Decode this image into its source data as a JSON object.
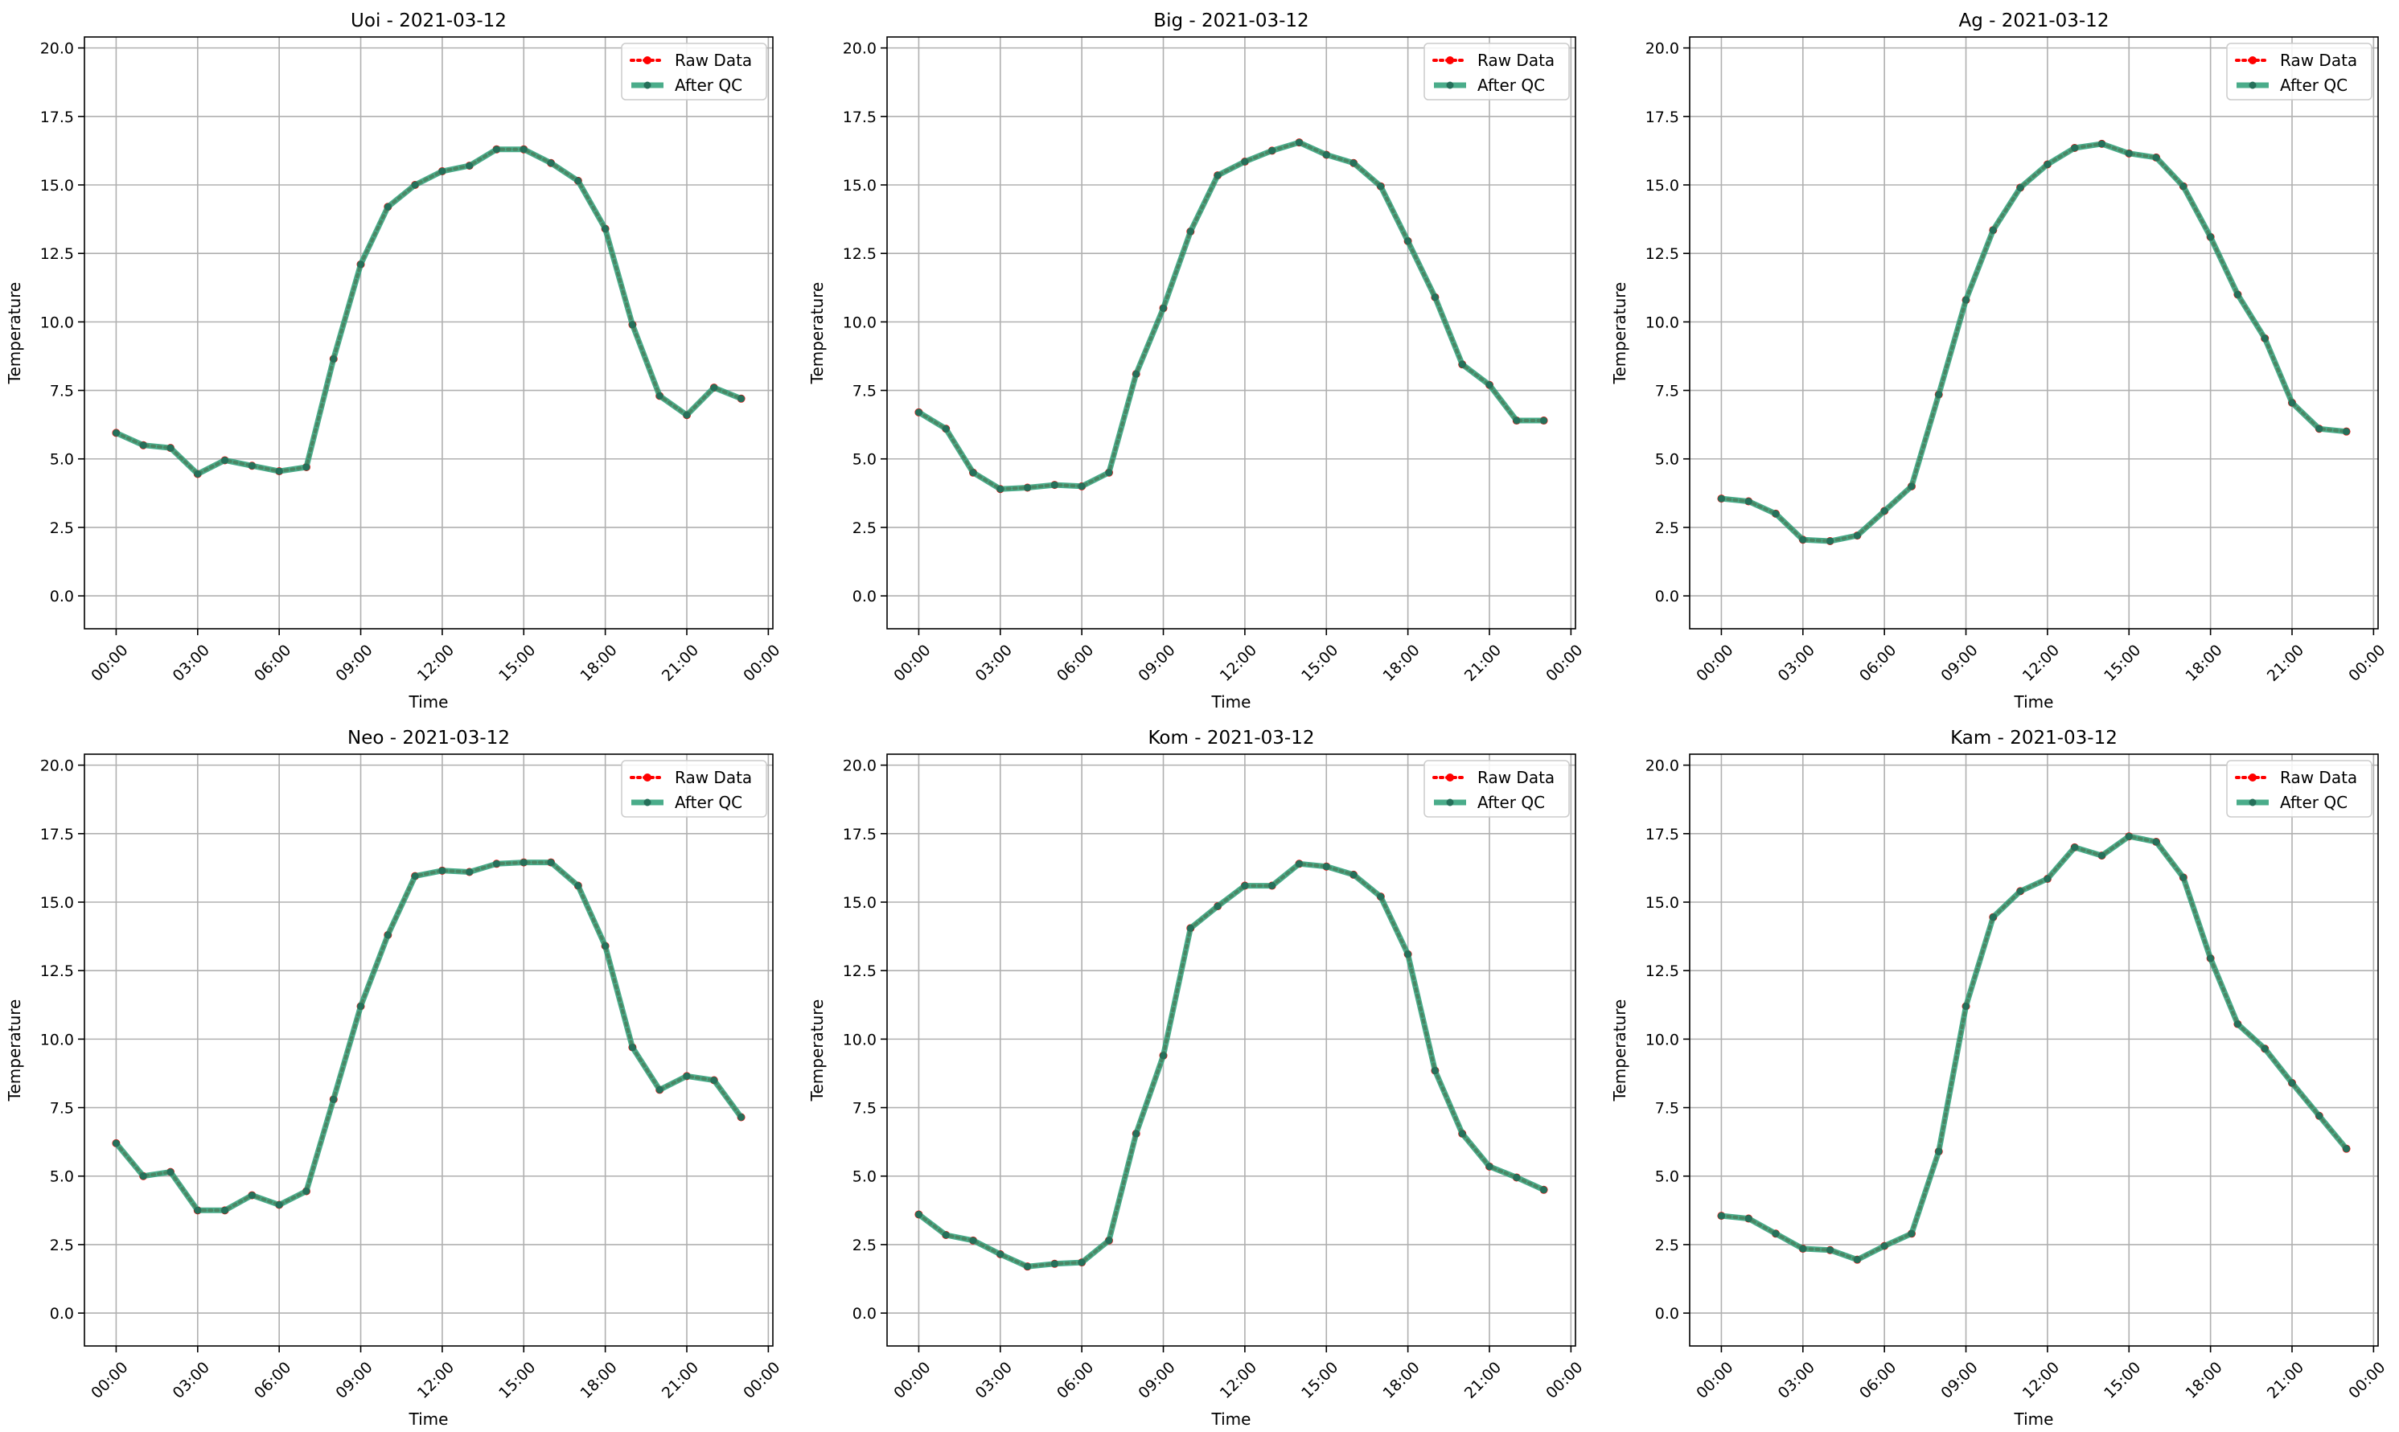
{
  "figure": {
    "background": "#ffffff"
  },
  "styles": {
    "raw_color": "#ff0000",
    "qc_color": "#2a9d75",
    "grid_color": "#b0b0b0"
  },
  "chart_data": [
    {
      "type": "line",
      "title": "Uoi - 2021-03-12",
      "xlabel": "Time",
      "ylabel": "Temperature",
      "xlim": [
        "2021-03-11 22:50",
        "2021-03-13 00:10"
      ],
      "ylim": [
        -1.2,
        20.4
      ],
      "xticks": [
        "00:00",
        "03:00",
        "06:00",
        "09:00",
        "12:00",
        "15:00",
        "18:00",
        "21:00",
        "00:00"
      ],
      "yticks": [
        "0.0",
        "2.5",
        "5.0",
        "7.5",
        "10.0",
        "12.5",
        "15.0",
        "17.5",
        "20.0"
      ],
      "grid": true,
      "legend": {
        "position": "upper-right",
        "entries": [
          "Raw Data",
          "After QC"
        ]
      },
      "x": [
        "00:00",
        "01:00",
        "02:00",
        "03:00",
        "04:00",
        "05:00",
        "06:00",
        "07:00",
        "08:00",
        "09:00",
        "10:00",
        "11:00",
        "12:00",
        "13:00",
        "14:00",
        "15:00",
        "16:00",
        "17:00",
        "18:00",
        "19:00",
        "20:00",
        "21:00",
        "22:00",
        "23:00"
      ],
      "series": [
        {
          "name": "Raw Data",
          "values": [
            5.95,
            5.5,
            5.4,
            4.45,
            4.95,
            4.75,
            4.55,
            4.7,
            8.65,
            12.1,
            14.2,
            15.0,
            15.5,
            15.7,
            16.3,
            16.3,
            15.8,
            15.15,
            13.4,
            9.9,
            7.3,
            6.6,
            7.6,
            7.2
          ]
        },
        {
          "name": "After QC",
          "values": [
            5.95,
            5.5,
            5.4,
            4.45,
            4.95,
            4.75,
            4.55,
            4.7,
            8.65,
            12.1,
            14.2,
            15.0,
            15.5,
            15.7,
            16.3,
            16.3,
            15.8,
            15.15,
            13.4,
            9.9,
            7.3,
            6.6,
            7.6,
            7.2
          ]
        }
      ]
    },
    {
      "type": "line",
      "title": "Big - 2021-03-12",
      "xlabel": "Time",
      "ylabel": "Temperature",
      "xlim": [
        "2021-03-11 22:50",
        "2021-03-13 00:10"
      ],
      "ylim": [
        -1.2,
        20.4
      ],
      "xticks": [
        "00:00",
        "03:00",
        "06:00",
        "09:00",
        "12:00",
        "15:00",
        "18:00",
        "21:00",
        "00:00"
      ],
      "yticks": [
        "0.0",
        "2.5",
        "5.0",
        "7.5",
        "10.0",
        "12.5",
        "15.0",
        "17.5",
        "20.0"
      ],
      "grid": true,
      "legend": {
        "position": "upper-right",
        "entries": [
          "Raw Data",
          "After QC"
        ]
      },
      "x": [
        "00:00",
        "01:00",
        "02:00",
        "03:00",
        "04:00",
        "05:00",
        "06:00",
        "07:00",
        "08:00",
        "09:00",
        "10:00",
        "11:00",
        "12:00",
        "13:00",
        "14:00",
        "15:00",
        "16:00",
        "17:00",
        "18:00",
        "19:00",
        "20:00",
        "21:00",
        "22:00",
        "23:00"
      ],
      "series": [
        {
          "name": "Raw Data",
          "values": [
            6.7,
            6.1,
            4.5,
            3.9,
            3.95,
            4.05,
            4.0,
            4.5,
            8.1,
            10.5,
            13.3,
            15.35,
            15.85,
            16.25,
            16.55,
            16.1,
            15.8,
            14.95,
            12.95,
            10.9,
            8.45,
            7.7,
            6.4,
            6.4
          ]
        },
        {
          "name": "After QC",
          "values": [
            6.7,
            6.1,
            4.5,
            3.9,
            3.95,
            4.05,
            4.0,
            4.5,
            8.1,
            10.5,
            13.3,
            15.35,
            15.85,
            16.25,
            16.55,
            16.1,
            15.8,
            14.95,
            12.95,
            10.9,
            8.45,
            7.7,
            6.4,
            6.4
          ]
        }
      ]
    },
    {
      "type": "line",
      "title": "Ag - 2021-03-12",
      "xlabel": "Time",
      "ylabel": "Temperature",
      "xlim": [
        "2021-03-11 22:50",
        "2021-03-13 00:10"
      ],
      "ylim": [
        -1.2,
        20.4
      ],
      "xticks": [
        "00:00",
        "03:00",
        "06:00",
        "09:00",
        "12:00",
        "15:00",
        "18:00",
        "21:00",
        "00:00"
      ],
      "yticks": [
        "0.0",
        "2.5",
        "5.0",
        "7.5",
        "10.0",
        "12.5",
        "15.0",
        "17.5",
        "20.0"
      ],
      "grid": true,
      "legend": {
        "position": "upper-right",
        "entries": [
          "Raw Data",
          "After QC"
        ]
      },
      "x": [
        "00:00",
        "01:00",
        "02:00",
        "03:00",
        "04:00",
        "05:00",
        "06:00",
        "07:00",
        "08:00",
        "09:00",
        "10:00",
        "11:00",
        "12:00",
        "13:00",
        "14:00",
        "15:00",
        "16:00",
        "17:00",
        "18:00",
        "19:00",
        "20:00",
        "21:00",
        "22:00",
        "23:00"
      ],
      "series": [
        {
          "name": "Raw Data",
          "values": [
            3.55,
            3.45,
            3.0,
            2.05,
            2.0,
            2.2,
            3.1,
            4.0,
            7.35,
            10.8,
            13.35,
            14.9,
            15.75,
            16.35,
            16.5,
            16.15,
            16.0,
            14.95,
            13.1,
            11.0,
            9.4,
            7.05,
            6.1,
            6.0
          ]
        },
        {
          "name": "After QC",
          "values": [
            3.55,
            3.45,
            3.0,
            2.05,
            2.0,
            2.2,
            3.1,
            4.0,
            7.35,
            10.8,
            13.35,
            14.9,
            15.75,
            16.35,
            16.5,
            16.15,
            16.0,
            14.95,
            13.1,
            11.0,
            9.4,
            7.05,
            6.1,
            6.0
          ]
        }
      ]
    },
    {
      "type": "line",
      "title": "Neo - 2021-03-12",
      "xlabel": "Time",
      "ylabel": "Temperature",
      "xlim": [
        "2021-03-11 22:50",
        "2021-03-13 00:10"
      ],
      "ylim": [
        -1.2,
        20.4
      ],
      "xticks": [
        "00:00",
        "03:00",
        "06:00",
        "09:00",
        "12:00",
        "15:00",
        "18:00",
        "21:00",
        "00:00"
      ],
      "yticks": [
        "0.0",
        "2.5",
        "5.0",
        "7.5",
        "10.0",
        "12.5",
        "15.0",
        "17.5",
        "20.0"
      ],
      "grid": true,
      "legend": {
        "position": "upper-right",
        "entries": [
          "Raw Data",
          "After QC"
        ]
      },
      "x": [
        "00:00",
        "01:00",
        "02:00",
        "03:00",
        "04:00",
        "05:00",
        "06:00",
        "07:00",
        "08:00",
        "09:00",
        "10:00",
        "11:00",
        "12:00",
        "13:00",
        "14:00",
        "15:00",
        "16:00",
        "17:00",
        "18:00",
        "19:00",
        "20:00",
        "21:00",
        "22:00",
        "23:00"
      ],
      "series": [
        {
          "name": "Raw Data",
          "values": [
            6.2,
            5.0,
            5.15,
            3.75,
            3.75,
            4.3,
            3.95,
            4.45,
            7.8,
            11.2,
            13.8,
            15.95,
            16.15,
            16.1,
            16.4,
            16.45,
            16.45,
            15.6,
            13.4,
            9.7,
            8.15,
            8.65,
            8.5,
            7.15
          ]
        },
        {
          "name": "After QC",
          "values": [
            6.2,
            5.0,
            5.15,
            3.75,
            3.75,
            4.3,
            3.95,
            4.45,
            7.8,
            11.2,
            13.8,
            15.95,
            16.15,
            16.1,
            16.4,
            16.45,
            16.45,
            15.6,
            13.4,
            9.7,
            8.15,
            8.65,
            8.5,
            7.15
          ]
        }
      ]
    },
    {
      "type": "line",
      "title": "Kom - 2021-03-12",
      "xlabel": "Time",
      "ylabel": "Temperature",
      "xlim": [
        "2021-03-11 22:50",
        "2021-03-13 00:10"
      ],
      "ylim": [
        -1.2,
        20.4
      ],
      "xticks": [
        "00:00",
        "03:00",
        "06:00",
        "09:00",
        "12:00",
        "15:00",
        "18:00",
        "21:00",
        "00:00"
      ],
      "yticks": [
        "0.0",
        "2.5",
        "5.0",
        "7.5",
        "10.0",
        "12.5",
        "15.0",
        "17.5",
        "20.0"
      ],
      "grid": true,
      "legend": {
        "position": "upper-right",
        "entries": [
          "Raw Data",
          "After QC"
        ]
      },
      "x": [
        "00:00",
        "01:00",
        "02:00",
        "03:00",
        "04:00",
        "05:00",
        "06:00",
        "07:00",
        "08:00",
        "09:00",
        "10:00",
        "11:00",
        "12:00",
        "13:00",
        "14:00",
        "15:00",
        "16:00",
        "17:00",
        "18:00",
        "19:00",
        "20:00",
        "21:00",
        "22:00",
        "23:00"
      ],
      "series": [
        {
          "name": "Raw Data",
          "values": [
            3.6,
            2.85,
            2.65,
            2.15,
            1.7,
            1.8,
            1.85,
            2.65,
            6.55,
            9.4,
            14.05,
            14.85,
            15.6,
            15.6,
            16.4,
            16.3,
            16.0,
            15.2,
            13.1,
            8.85,
            6.55,
            5.35,
            4.95,
            4.5
          ]
        },
        {
          "name": "After QC",
          "values": [
            3.6,
            2.85,
            2.65,
            2.15,
            1.7,
            1.8,
            1.85,
            2.65,
            6.55,
            9.4,
            14.05,
            14.85,
            15.6,
            15.6,
            16.4,
            16.3,
            16.0,
            15.2,
            13.1,
            8.85,
            6.55,
            5.35,
            4.95,
            4.5
          ]
        }
      ]
    },
    {
      "type": "line",
      "title": "Kam - 2021-03-12",
      "xlabel": "Time",
      "ylabel": "Temperature",
      "xlim": [
        "2021-03-11 22:50",
        "2021-03-13 00:10"
      ],
      "ylim": [
        -1.2,
        20.4
      ],
      "xticks": [
        "00:00",
        "03:00",
        "06:00",
        "09:00",
        "12:00",
        "15:00",
        "18:00",
        "21:00",
        "00:00"
      ],
      "yticks": [
        "0.0",
        "2.5",
        "5.0",
        "7.5",
        "10.0",
        "12.5",
        "15.0",
        "17.5",
        "20.0"
      ],
      "grid": true,
      "legend": {
        "position": "upper-right",
        "entries": [
          "Raw Data",
          "After QC"
        ]
      },
      "x": [
        "00:00",
        "01:00",
        "02:00",
        "03:00",
        "04:00",
        "05:00",
        "06:00",
        "07:00",
        "08:00",
        "09:00",
        "10:00",
        "11:00",
        "12:00",
        "13:00",
        "14:00",
        "15:00",
        "16:00",
        "17:00",
        "18:00",
        "19:00",
        "20:00",
        "21:00",
        "22:00",
        "23:00"
      ],
      "series": [
        {
          "name": "Raw Data",
          "values": [
            3.55,
            3.45,
            2.9,
            2.35,
            2.3,
            1.95,
            2.45,
            2.9,
            5.9,
            11.2,
            14.45,
            15.4,
            15.85,
            17.0,
            16.7,
            17.4,
            17.2,
            15.9,
            12.95,
            10.55,
            9.65,
            8.4,
            7.2,
            6.0
          ]
        },
        {
          "name": "After QC",
          "values": [
            3.55,
            3.45,
            2.9,
            2.35,
            2.3,
            1.95,
            2.45,
            2.9,
            5.9,
            11.2,
            14.45,
            15.4,
            15.85,
            17.0,
            16.7,
            17.4,
            17.2,
            15.9,
            12.95,
            10.55,
            9.65,
            8.4,
            7.2,
            6.0
          ]
        }
      ]
    }
  ]
}
